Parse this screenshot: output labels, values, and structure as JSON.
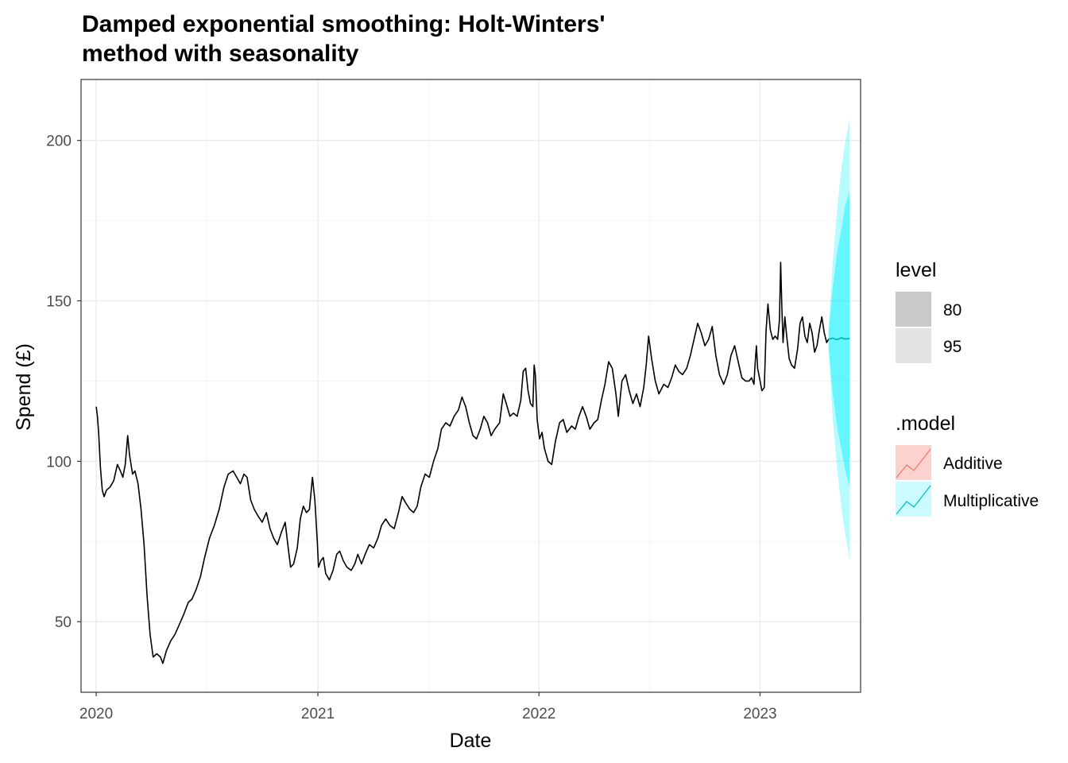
{
  "chart_data": {
    "type": "line",
    "title": "Damped exponential smoothing: Holt-Winters' method with seasonality",
    "title_lines": [
      "Damped exponential smoothing: Holt-Winters'",
      "method with seasonality"
    ],
    "xlabel": "Date",
    "ylabel": "Spend (£)",
    "xlim": [
      "2019-12-07",
      "2023-06-16"
    ],
    "ylim": [
      28,
      219
    ],
    "x_ticks": [
      "2020",
      "2021",
      "2022",
      "2023"
    ],
    "y_ticks": [
      50,
      100,
      150,
      200
    ],
    "grid": true,
    "legend_position": "right",
    "series": [
      {
        "name": "",
        "color": "#000000",
        "points": [
          [
            "2020-01-01",
            117
          ],
          [
            "2020-01-03",
            114
          ],
          [
            "2020-01-05",
            109
          ],
          [
            "2020-01-08",
            98
          ],
          [
            "2020-01-11",
            91
          ],
          [
            "2020-01-14",
            89
          ],
          [
            "2020-01-18",
            91
          ],
          [
            "2020-01-24",
            92
          ],
          [
            "2020-01-30",
            94
          ],
          [
            "2020-02-05",
            99
          ],
          [
            "2020-02-10",
            97
          ],
          [
            "2020-02-14",
            95
          ],
          [
            "2020-02-18",
            99
          ],
          [
            "2020-02-22",
            108
          ],
          [
            "2020-02-25",
            102
          ],
          [
            "2020-03-01",
            96
          ],
          [
            "2020-03-05",
            97
          ],
          [
            "2020-03-10",
            93
          ],
          [
            "2020-03-15",
            85
          ],
          [
            "2020-03-20",
            74
          ],
          [
            "2020-03-25",
            58
          ],
          [
            "2020-03-30",
            46
          ],
          [
            "2020-04-04",
            39
          ],
          [
            "2020-04-10",
            40
          ],
          [
            "2020-04-16",
            39
          ],
          [
            "2020-04-20",
            37
          ],
          [
            "2020-04-26",
            41
          ],
          [
            "2020-05-03",
            44
          ],
          [
            "2020-05-10",
            46
          ],
          [
            "2020-05-17",
            49
          ],
          [
            "2020-05-24",
            52
          ],
          [
            "2020-06-01",
            56
          ],
          [
            "2020-06-07",
            57
          ],
          [
            "2020-06-14",
            60
          ],
          [
            "2020-06-21",
            64
          ],
          [
            "2020-06-28",
            70
          ],
          [
            "2020-07-06",
            76
          ],
          [
            "2020-07-14",
            80
          ],
          [
            "2020-07-22",
            85
          ],
          [
            "2020-07-30",
            92
          ],
          [
            "2020-08-06",
            96
          ],
          [
            "2020-08-14",
            97
          ],
          [
            "2020-08-20",
            95
          ],
          [
            "2020-08-26",
            93
          ],
          [
            "2020-09-01",
            96
          ],
          [
            "2020-09-06",
            95
          ],
          [
            "2020-09-12",
            88
          ],
          [
            "2020-09-18",
            85
          ],
          [
            "2020-09-24",
            83
          ],
          [
            "2020-10-01",
            81
          ],
          [
            "2020-10-08",
            84
          ],
          [
            "2020-10-14",
            79
          ],
          [
            "2020-10-20",
            76
          ],
          [
            "2020-10-26",
            74
          ],
          [
            "2020-11-02",
            78
          ],
          [
            "2020-11-08",
            81
          ],
          [
            "2020-11-13",
            73
          ],
          [
            "2020-11-17",
            67
          ],
          [
            "2020-11-22",
            68
          ],
          [
            "2020-11-28",
            73
          ],
          [
            "2020-12-03",
            82
          ],
          [
            "2020-12-08",
            86
          ],
          [
            "2020-12-13",
            84
          ],
          [
            "2020-12-18",
            85
          ],
          [
            "2020-12-23",
            95
          ],
          [
            "2020-12-27",
            88
          ],
          [
            "2020-12-31",
            75
          ],
          [
            "2021-01-02",
            67
          ],
          [
            "2021-01-06",
            69
          ],
          [
            "2021-01-10",
            70
          ],
          [
            "2021-01-14",
            65
          ],
          [
            "2021-01-20",
            63
          ],
          [
            "2021-01-26",
            66
          ],
          [
            "2021-02-01",
            71
          ],
          [
            "2021-02-06",
            72
          ],
          [
            "2021-02-12",
            69
          ],
          [
            "2021-02-18",
            67
          ],
          [
            "2021-02-25",
            66
          ],
          [
            "2021-03-03",
            68
          ],
          [
            "2021-03-08",
            71
          ],
          [
            "2021-03-14",
            68
          ],
          [
            "2021-03-20",
            71
          ],
          [
            "2021-03-27",
            74
          ],
          [
            "2021-04-03",
            73
          ],
          [
            "2021-04-10",
            76
          ],
          [
            "2021-04-16",
            80
          ],
          [
            "2021-04-23",
            82
          ],
          [
            "2021-04-30",
            80
          ],
          [
            "2021-05-07",
            79
          ],
          [
            "2021-05-14",
            84
          ],
          [
            "2021-05-20",
            89
          ],
          [
            "2021-05-26",
            87
          ],
          [
            "2021-06-02",
            85
          ],
          [
            "2021-06-08",
            84
          ],
          [
            "2021-06-14",
            86
          ],
          [
            "2021-06-20",
            92
          ],
          [
            "2021-06-27",
            96
          ],
          [
            "2021-07-04",
            95
          ],
          [
            "2021-07-11",
            100
          ],
          [
            "2021-07-18",
            104
          ],
          [
            "2021-07-24",
            110
          ],
          [
            "2021-07-31",
            112
          ],
          [
            "2021-08-07",
            111
          ],
          [
            "2021-08-14",
            114
          ],
          [
            "2021-08-21",
            116
          ],
          [
            "2021-08-27",
            120
          ],
          [
            "2021-09-02",
            117
          ],
          [
            "2021-09-08",
            112
          ],
          [
            "2021-09-14",
            108
          ],
          [
            "2021-09-20",
            107
          ],
          [
            "2021-09-26",
            110
          ],
          [
            "2021-10-02",
            114
          ],
          [
            "2021-10-08",
            112
          ],
          [
            "2021-10-14",
            108
          ],
          [
            "2021-10-20",
            110
          ],
          [
            "2021-10-28",
            112
          ],
          [
            "2021-11-03",
            121
          ],
          [
            "2021-11-08",
            118
          ],
          [
            "2021-11-14",
            114
          ],
          [
            "2021-11-20",
            115
          ],
          [
            "2021-11-26",
            114
          ],
          [
            "2021-12-02",
            119
          ],
          [
            "2021-12-06",
            128
          ],
          [
            "2021-12-10",
            129
          ],
          [
            "2021-12-14",
            122
          ],
          [
            "2021-12-18",
            118
          ],
          [
            "2021-12-22",
            117
          ],
          [
            "2021-12-24",
            130
          ],
          [
            "2021-12-26",
            127
          ],
          [
            "2021-12-29",
            113
          ],
          [
            "2022-01-02",
            107
          ],
          [
            "2022-01-06",
            109
          ],
          [
            "2022-01-10",
            104
          ],
          [
            "2022-01-16",
            100
          ],
          [
            "2022-01-22",
            99
          ],
          [
            "2022-01-28",
            106
          ],
          [
            "2022-02-04",
            112
          ],
          [
            "2022-02-10",
            113
          ],
          [
            "2022-02-16",
            109
          ],
          [
            "2022-02-24",
            111
          ],
          [
            "2022-03-02",
            110
          ],
          [
            "2022-03-08",
            114
          ],
          [
            "2022-03-14",
            117
          ],
          [
            "2022-03-20",
            114
          ],
          [
            "2022-03-26",
            110
          ],
          [
            "2022-04-02",
            112
          ],
          [
            "2022-04-08",
            113
          ],
          [
            "2022-04-14",
            119
          ],
          [
            "2022-04-20",
            124
          ],
          [
            "2022-04-26",
            131
          ],
          [
            "2022-05-02",
            129
          ],
          [
            "2022-05-08",
            121
          ],
          [
            "2022-05-12",
            114
          ],
          [
            "2022-05-18",
            125
          ],
          [
            "2022-05-24",
            127
          ],
          [
            "2022-05-30",
            122
          ],
          [
            "2022-06-05",
            118
          ],
          [
            "2022-06-11",
            121
          ],
          [
            "2022-06-17",
            117
          ],
          [
            "2022-06-23",
            123
          ],
          [
            "2022-06-27",
            130
          ],
          [
            "2022-07-01",
            139
          ],
          [
            "2022-07-06",
            132
          ],
          [
            "2022-07-12",
            125
          ],
          [
            "2022-07-18",
            121
          ],
          [
            "2022-07-26",
            124
          ],
          [
            "2022-08-02",
            123
          ],
          [
            "2022-08-08",
            126
          ],
          [
            "2022-08-14",
            130
          ],
          [
            "2022-08-20",
            128
          ],
          [
            "2022-08-26",
            127
          ],
          [
            "2022-09-02",
            129
          ],
          [
            "2022-09-08",
            133
          ],
          [
            "2022-09-14",
            138
          ],
          [
            "2022-09-20",
            143
          ],
          [
            "2022-09-26",
            140
          ],
          [
            "2022-10-02",
            136
          ],
          [
            "2022-10-08",
            138
          ],
          [
            "2022-10-14",
            142
          ],
          [
            "2022-10-20",
            133
          ],
          [
            "2022-10-26",
            127
          ],
          [
            "2022-11-02",
            124
          ],
          [
            "2022-11-08",
            127
          ],
          [
            "2022-11-14",
            133
          ],
          [
            "2022-11-20",
            136
          ],
          [
            "2022-11-26",
            131
          ],
          [
            "2022-12-02",
            126
          ],
          [
            "2022-12-08",
            125
          ],
          [
            "2022-12-14",
            125
          ],
          [
            "2022-12-18",
            126
          ],
          [
            "2022-12-22",
            124
          ],
          [
            "2022-12-24",
            131
          ],
          [
            "2022-12-26",
            136
          ],
          [
            "2022-12-28",
            129
          ],
          [
            "2023-01-01",
            125
          ],
          [
            "2023-01-04",
            122
          ],
          [
            "2023-01-08",
            123
          ],
          [
            "2023-01-11",
            141
          ],
          [
            "2023-01-14",
            149
          ],
          [
            "2023-01-18",
            141
          ],
          [
            "2023-01-22",
            138
          ],
          [
            "2023-01-26",
            139
          ],
          [
            "2023-01-30",
            138
          ],
          [
            "2023-02-02",
            144
          ],
          [
            "2023-02-04",
            162
          ],
          [
            "2023-02-06",
            148
          ],
          [
            "2023-02-08",
            137
          ],
          [
            "2023-02-11",
            145
          ],
          [
            "2023-02-14",
            139
          ],
          [
            "2023-02-18",
            132
          ],
          [
            "2023-02-22",
            130
          ],
          [
            "2023-02-27",
            129
          ],
          [
            "2023-03-04",
            135
          ],
          [
            "2023-03-08",
            143
          ],
          [
            "2023-03-12",
            145
          ],
          [
            "2023-03-16",
            139
          ],
          [
            "2023-03-20",
            137
          ],
          [
            "2023-03-24",
            143
          ],
          [
            "2023-03-28",
            140
          ],
          [
            "2023-04-01",
            134
          ],
          [
            "2023-04-05",
            136
          ],
          [
            "2023-04-09",
            141
          ],
          [
            "2023-04-13",
            145
          ],
          [
            "2023-04-17",
            140
          ],
          [
            "2023-04-21",
            137
          ],
          [
            "2023-04-24",
            138
          ]
        ]
      }
    ],
    "forecast": {
      "x": [
        "2023-04-24",
        "2023-05-01",
        "2023-05-08",
        "2023-05-15",
        "2023-05-22",
        "2023-05-29"
      ],
      "mean": [
        138,
        138.4,
        137.9,
        138.5,
        138.1,
        138.3
      ],
      "ci80": {
        "lower": [
          136,
          121,
          111,
          104,
          97,
          92
        ],
        "upper": [
          140,
          154,
          165,
          172,
          180,
          184
        ]
      },
      "ci95": {
        "lower": [
          135,
          113,
          98,
          86,
          77,
          69
        ],
        "upper": [
          141,
          162,
          178,
          191,
          200,
          207
        ]
      },
      "fill_color": "#00f0ff",
      "line_color": "#00b8b8"
    },
    "legend": {
      "level": {
        "title": "level",
        "items": [
          "80",
          "95"
        ]
      },
      "model": {
        "title": ".model",
        "items": [
          {
            "label": "Additive",
            "color": "#f8766d"
          },
          {
            "label": "Multiplicative",
            "color": "#00bfc4"
          }
        ]
      }
    }
  }
}
